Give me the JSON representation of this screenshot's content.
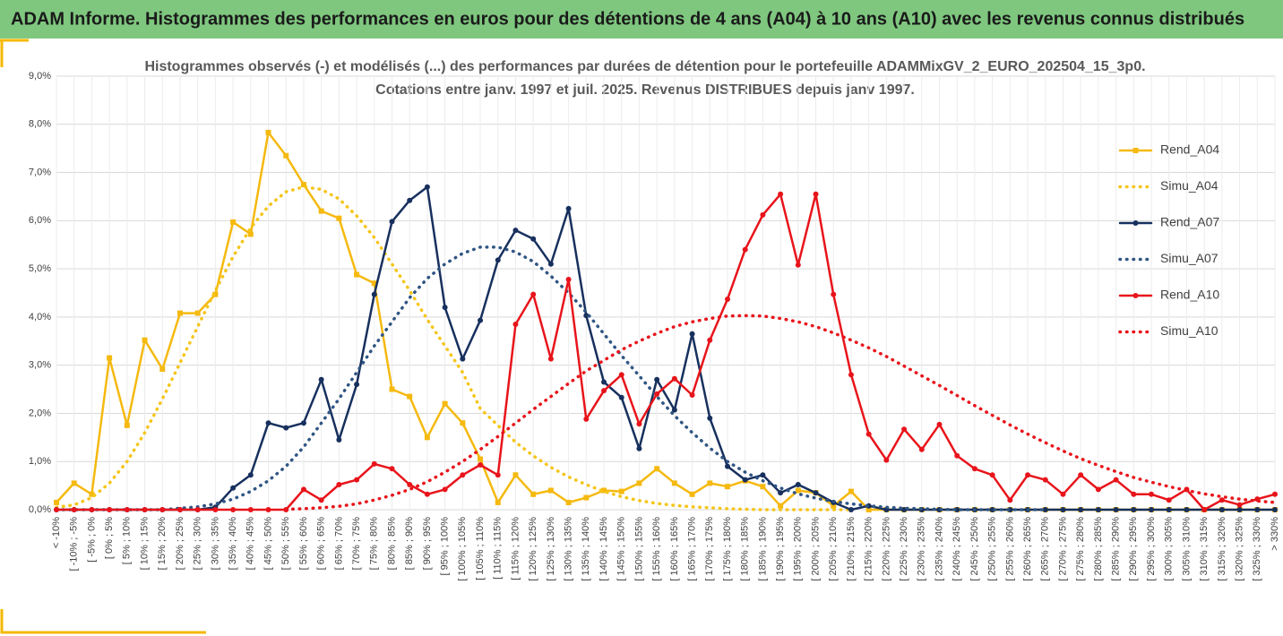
{
  "header": {
    "title": "ADAM Informe. Histogrammes des performances en euros pour des détentions de 4 ans (A04) à 10 ans (A10) avec les revenus connus distribués"
  },
  "chart_data": {
    "type": "line",
    "title": "Histogrammes observés (-) et modélisés (...) des performances par durées de détention pour  le portefeuille ADAMMixGV_2_EURO_202504_15_3p0.",
    "subtitle": "Cotations entre janv. 1997 et juil. 2025. Revenus DISTRIBUES depuis janv 1997.",
    "categories": [
      "< -10%",
      "[ -10% ; -5%",
      "[ -5% ; 0%",
      "[ 0% ; 5%",
      "[ 5% ; 10%",
      "[ 10% ; 15%",
      "[ 15% ; 20%",
      "[ 20% ; 25%",
      "[ 25% ; 30%",
      "[ 30% ; 35%",
      "[ 35% ; 40%",
      "[ 40% ; 45%",
      "[ 45% ; 50%",
      "[ 50% ; 55%",
      "[ 55% ; 60%",
      "[ 60% ; 65%",
      "[ 65% ; 70%",
      "[ 70% ; 75%",
      "[ 75% ; 80%",
      "[ 80% ; 85%",
      "[ 85% ; 90%",
      "[ 90% ; 95%",
      "[ 95% ; 100%",
      "[ 100% ; 105%",
      "[ 105% ; 110%",
      "[ 110% ; 115%",
      "[ 115% ; 120%",
      "[ 120% ; 125%",
      "[ 125% ; 130%",
      "[ 130% ; 135%",
      "[ 135% ; 140%",
      "[ 140% ; 145%",
      "[ 145% ; 150%",
      "[ 150% ; 155%",
      "[ 155% ; 160%",
      "[ 160% ; 165%",
      "[ 165% ; 170%",
      "[ 170% ; 175%",
      "[ 175% ; 180%",
      "[ 180% ; 185%",
      "[ 185% ; 190%",
      "[ 190% ; 195%",
      "[ 195% ; 200%",
      "[ 200% ; 205%",
      "[ 205% ; 210%",
      "[ 210% ; 215%",
      "[ 215% ; 220%",
      "[ 220% ; 225%",
      "[ 225% ; 230%",
      "[ 230% ; 235%",
      "[ 235% ; 240%",
      "[ 240% ; 245%",
      "[ 245% ; 250%",
      "[ 250% ; 255%",
      "[ 255% ; 260%",
      "[ 260% ; 265%",
      "[ 265% ; 270%",
      "[ 270% ; 275%",
      "[ 275% ; 280%",
      "[ 280% ; 285%",
      "[ 285% ; 290%",
      "[ 290% ; 295%",
      "[ 295% ; 300%",
      "[ 300% ; 305%",
      "[ 305% ; 310%",
      "[ 310% ; 315%",
      "[ 315% ; 320%",
      "[ 320% ; 325%",
      "[ 325% ; 330%",
      "> 330%"
    ],
    "series": [
      {
        "name": "Rend_A04",
        "color": "#f5b90f",
        "line_style": "solid",
        "marker": "square",
        "values": [
          0.15,
          0.55,
          0.32,
          3.15,
          1.75,
          3.52,
          2.92,
          4.08,
          4.08,
          4.47,
          5.97,
          5.72,
          7.83,
          7.35,
          6.75,
          6.2,
          6.05,
          4.88,
          4.7,
          2.5,
          2.35,
          1.5,
          2.2,
          1.8,
          1.05,
          0.15,
          0.72,
          0.32,
          0.4,
          0.15,
          0.25,
          0.4,
          0.38,
          0.55,
          0.85,
          0.55,
          0.32,
          0.55,
          0.48,
          0.6,
          0.48,
          0.08,
          0.4,
          0.35,
          0.08,
          0.38,
          0,
          0,
          0,
          0,
          0,
          0,
          0,
          0,
          0,
          0,
          0,
          0,
          0,
          0,
          0,
          0,
          0,
          0,
          0,
          0,
          0,
          0,
          0,
          0
        ]
      },
      {
        "name": "Simu_A04",
        "color": "#f5c518",
        "line_style": "dotted",
        "marker": "none",
        "values": [
          0.05,
          0.1,
          0.25,
          0.55,
          1.0,
          1.6,
          2.3,
          3.05,
          3.8,
          4.55,
          5.25,
          5.85,
          6.3,
          6.6,
          6.7,
          6.65,
          6.45,
          6.1,
          5.65,
          5.1,
          4.55,
          3.95,
          3.4,
          2.85,
          2.1,
          1.75,
          1.4,
          1.12,
          0.88,
          0.68,
          0.52,
          0.38,
          0.27,
          0.19,
          0.13,
          0.09,
          0.06,
          0.04,
          0.02,
          0.01,
          0,
          0,
          0,
          0,
          0,
          0,
          null,
          null,
          null,
          null,
          null,
          null,
          null,
          null,
          null,
          null,
          null,
          null,
          null,
          null,
          null,
          null,
          null,
          null,
          null,
          null,
          null,
          null,
          null,
          null
        ]
      },
      {
        "name": "Rend_A07",
        "color": "#17305e",
        "line_style": "solid",
        "marker": "circle",
        "values": [
          0,
          0,
          0,
          0,
          0,
          0,
          0,
          0,
          0,
          0.05,
          0.45,
          0.72,
          1.8,
          1.7,
          1.8,
          2.7,
          1.45,
          2.6,
          4.47,
          5.98,
          6.42,
          6.7,
          4.2,
          3.13,
          3.93,
          5.18,
          5.8,
          5.62,
          5.1,
          6.25,
          4.03,
          2.65,
          2.33,
          1.27,
          2.7,
          2.07,
          3.65,
          1.9,
          0.9,
          0.62,
          0.72,
          0.35,
          0.52,
          0.35,
          0.15,
          0,
          0.08,
          0,
          0,
          0,
          0,
          0,
          0,
          0,
          0,
          0,
          0,
          0,
          0,
          0,
          0,
          0,
          0,
          0,
          0,
          0,
          0,
          0,
          0,
          0
        ]
      },
      {
        "name": "Simu_A07",
        "color": "#2f5583",
        "line_style": "dotted",
        "marker": "none",
        "values": [
          0,
          0,
          0,
          0,
          0,
          0,
          0,
          0.03,
          0.06,
          0.12,
          0.22,
          0.38,
          0.6,
          0.9,
          1.3,
          1.8,
          2.3,
          2.85,
          3.4,
          3.9,
          4.4,
          4.8,
          5.1,
          5.32,
          5.45,
          5.45,
          5.35,
          5.15,
          4.85,
          4.5,
          4.1,
          3.65,
          3.2,
          2.78,
          2.35,
          1.95,
          1.6,
          1.28,
          1.0,
          0.78,
          0.6,
          0.45,
          0.33,
          0.24,
          0.17,
          0.12,
          0.08,
          0.05,
          0.03,
          0.02,
          0.01,
          0,
          0,
          0,
          0,
          0,
          0,
          null,
          null,
          null,
          null,
          null,
          null,
          null,
          null,
          null,
          null,
          null,
          null,
          null
        ]
      },
      {
        "name": "Rend_A10",
        "color": "#e8141b",
        "line_style": "solid",
        "marker": "circle",
        "values": [
          0,
          0,
          0,
          0,
          0,
          0,
          0,
          0,
          0,
          0,
          0,
          0,
          0,
          0,
          0.42,
          0.2,
          0.52,
          0.62,
          0.95,
          0.85,
          0.52,
          0.32,
          0.42,
          0.72,
          0.93,
          0.72,
          3.85,
          4.47,
          3.13,
          4.78,
          1.88,
          2.47,
          2.8,
          1.78,
          2.4,
          2.72,
          2.38,
          3.52,
          4.37,
          5.4,
          6.12,
          6.55,
          5.08,
          6.55,
          4.47,
          2.8,
          1.57,
          1.03,
          1.67,
          1.25,
          1.77,
          1.12,
          0.85,
          0.72,
          0.2,
          0.72,
          0.62,
          0.32,
          0.72,
          0.42,
          0.62,
          0.32,
          0.32,
          0.2,
          0.42,
          0,
          0.2,
          0.1,
          0.22,
          0.32
        ]
      },
      {
        "name": "Simu_A10",
        "color": "#e8141b",
        "line_style": "dotted",
        "marker": "none",
        "values": [
          null,
          null,
          null,
          null,
          null,
          null,
          null,
          null,
          null,
          null,
          null,
          null,
          null,
          0.01,
          0.02,
          0.04,
          0.07,
          0.12,
          0.2,
          0.3,
          0.42,
          0.58,
          0.78,
          1.0,
          1.25,
          1.52,
          1.8,
          2.08,
          2.35,
          2.62,
          2.88,
          3.1,
          3.32,
          3.5,
          3.66,
          3.8,
          3.9,
          3.97,
          4.02,
          4.03,
          4.02,
          3.97,
          3.9,
          3.8,
          3.67,
          3.52,
          3.36,
          3.18,
          2.98,
          2.78,
          2.58,
          2.37,
          2.16,
          1.96,
          1.76,
          1.57,
          1.39,
          1.22,
          1.06,
          0.92,
          0.79,
          0.67,
          0.57,
          0.48,
          0.4,
          0.33,
          0.27,
          0.22,
          0.18,
          0.15
        ]
      }
    ],
    "ylim": [
      0,
      9
    ],
    "yticks": [
      {
        "value": 0,
        "label": "0,0%"
      },
      {
        "value": 1,
        "label": "1,0%"
      },
      {
        "value": 2,
        "label": "2,0%"
      },
      {
        "value": 3,
        "label": "3,0%"
      },
      {
        "value": 4,
        "label": "4,0%"
      },
      {
        "value": 5,
        "label": "5,0%"
      },
      {
        "value": 6,
        "label": "6,0%"
      },
      {
        "value": 7,
        "label": "7,0%"
      },
      {
        "value": 8,
        "label": "8,0%"
      },
      {
        "value": 9,
        "label": "9,0%"
      }
    ],
    "grid": true,
    "legend": "right"
  }
}
